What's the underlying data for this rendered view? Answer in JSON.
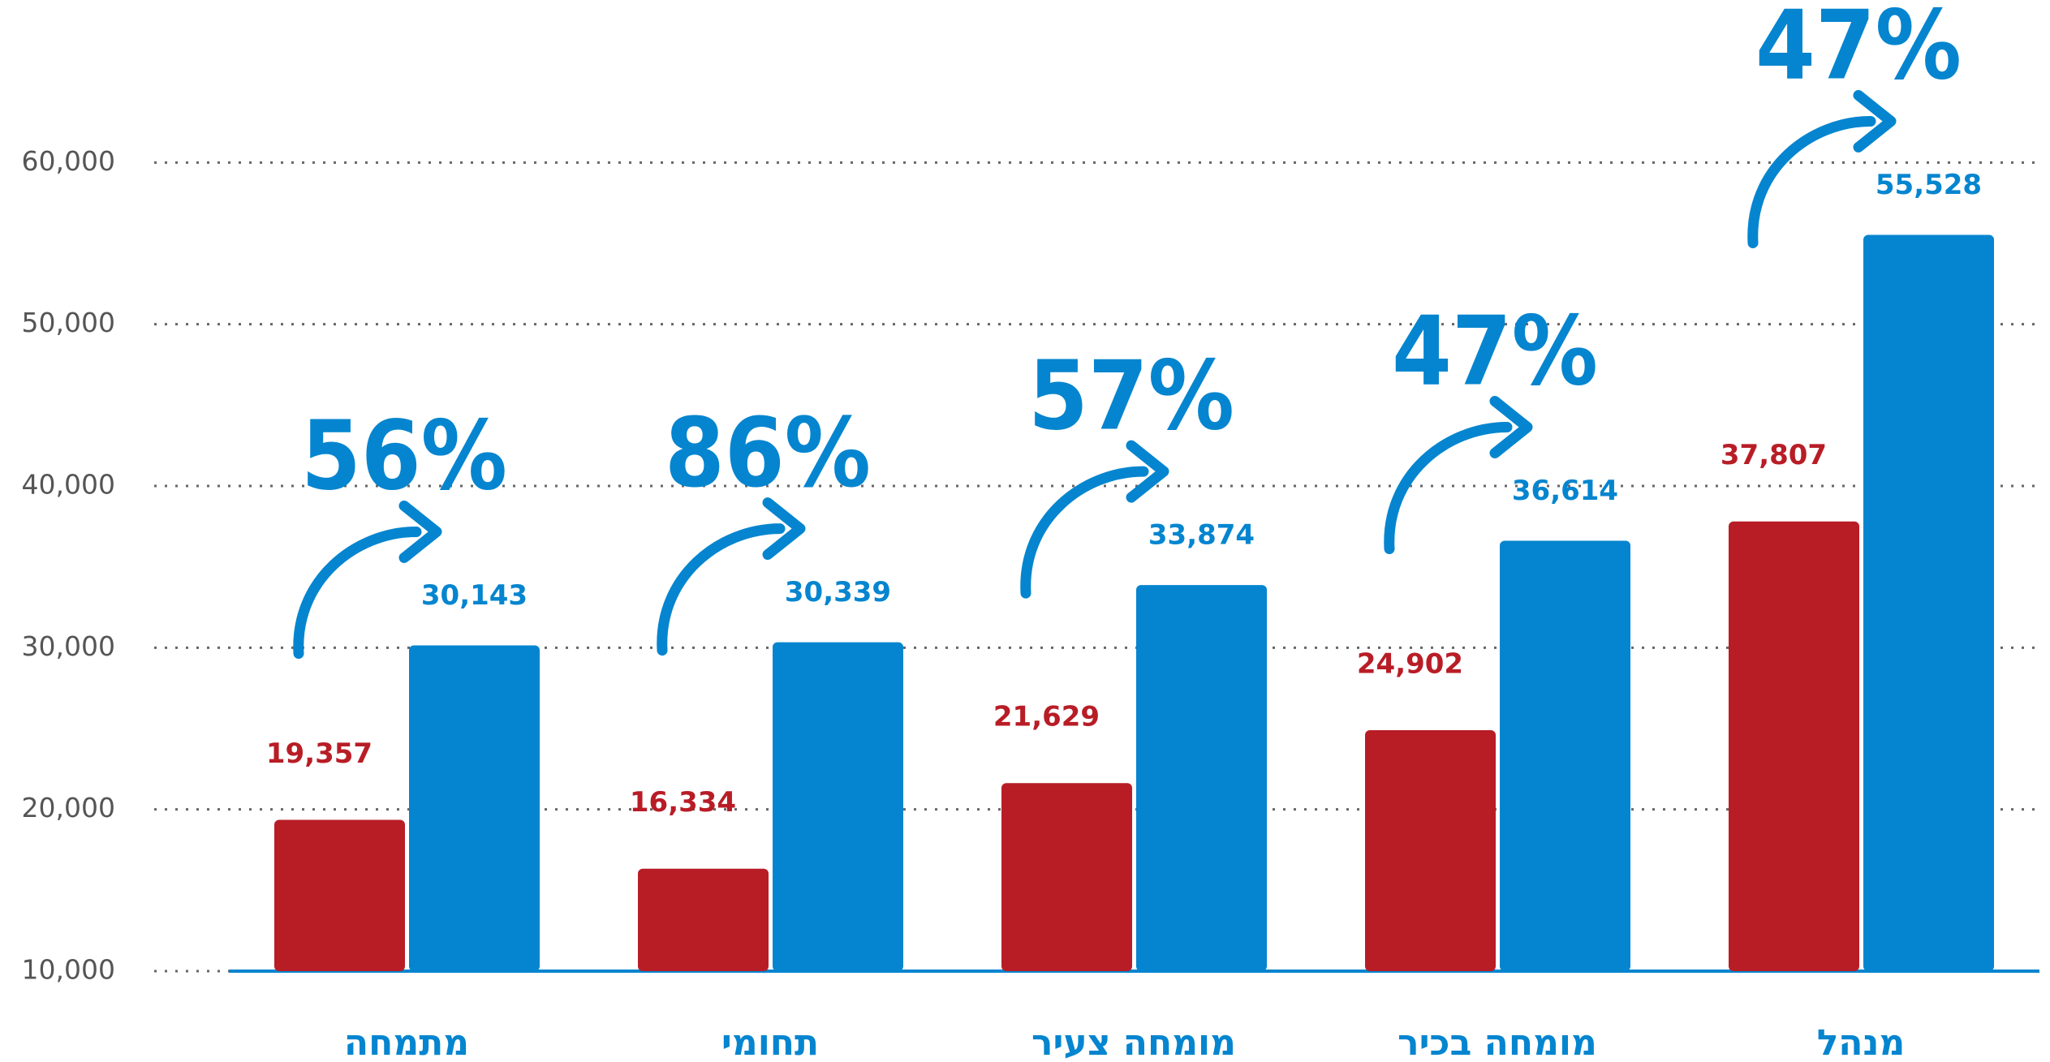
{
  "chart_data": {
    "type": "bar",
    "categories": [
      "מתמחה",
      "תחומי",
      "מומחה צעיר",
      "מומחה בכיר",
      "מנהל"
    ],
    "series": [
      {
        "color": "#b81d26",
        "values": [
          19357,
          16334,
          21629,
          24902,
          37807
        ],
        "value_labels": [
          "19,357",
          "16,334",
          "21,629",
          "24,902",
          "37,807"
        ]
      },
      {
        "color": "#0585cf",
        "values": [
          30143,
          30339,
          33874,
          36614,
          55528
        ],
        "value_labels": [
          "30,143",
          "30,339",
          "33,874",
          "36,614",
          "55,528"
        ]
      }
    ],
    "annotations": [
      "56%",
      "86%",
      "57%",
      "47%",
      "47%"
    ],
    "ylim": [
      10000,
      70000
    ],
    "yticks": [
      {
        "value": 10000,
        "label": "10,000"
      },
      {
        "value": 20000,
        "label": "20,000"
      },
      {
        "value": 30000,
        "label": "30,000"
      },
      {
        "value": 40000,
        "label": "40,000"
      },
      {
        "value": 50000,
        "label": "50,000"
      },
      {
        "value": 60000,
        "label": "60,000"
      }
    ],
    "grid": true
  }
}
